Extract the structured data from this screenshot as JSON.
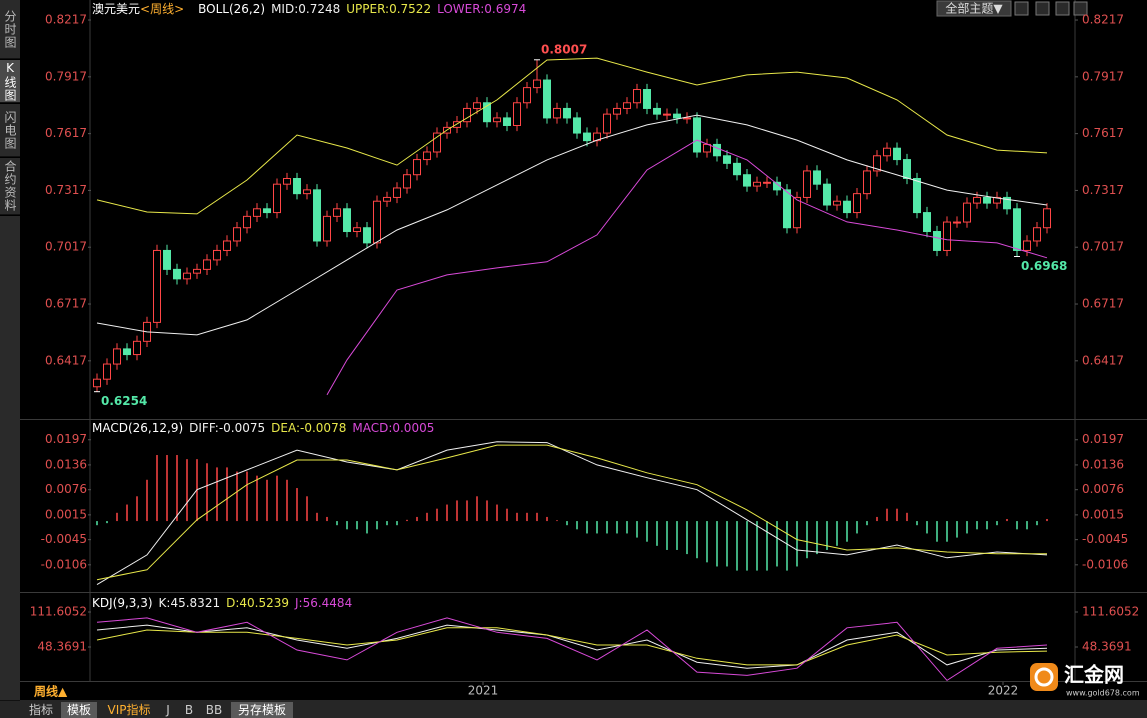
{
  "chart_data": [
    {
      "type": "candlestick",
      "title": "澳元美元",
      "subtitle": "<周线>",
      "indicator": "BOLL(26,2)",
      "up_color": "#ff4646",
      "down_color": "#54e8a8",
      "xlim": [
        -0.5,
        95.5
      ],
      "ylim": [
        0.6115,
        0.827
      ],
      "yticks": [
        0.8217,
        0.7917,
        0.7617,
        0.7317,
        0.7017,
        0.6717,
        0.6417
      ],
      "open": [
        0.628,
        0.632,
        0.64,
        0.648,
        0.645,
        0.652,
        0.662,
        0.7,
        0.69,
        0.685,
        0.688,
        0.69,
        0.695,
        0.7,
        0.705,
        0.712,
        0.718,
        0.722,
        0.72,
        0.735,
        0.738,
        0.73,
        0.732,
        0.705,
        0.718,
        0.722,
        0.71,
        0.712,
        0.704,
        0.726,
        0.728,
        0.733,
        0.74,
        0.748,
        0.752,
        0.762,
        0.765,
        0.768,
        0.775,
        0.778,
        0.768,
        0.77,
        0.766,
        0.778,
        0.786,
        0.79,
        0.77,
        0.775,
        0.77,
        0.762,
        0.758,
        0.762,
        0.772,
        0.775,
        0.778,
        0.785,
        0.775,
        0.772,
        0.772,
        0.77,
        0.77,
        0.752,
        0.756,
        0.75,
        0.746,
        0.74,
        0.734,
        0.736,
        0.736,
        0.732,
        0.712,
        0.728,
        0.742,
        0.735,
        0.724,
        0.726,
        0.72,
        0.73,
        0.742,
        0.75,
        0.754,
        0.748,
        0.738,
        0.72,
        0.71,
        0.7,
        0.715,
        0.715,
        0.725,
        0.728,
        0.725,
        0.728,
        0.722,
        0.7,
        0.705,
        0.712
      ],
      "high": [
        0.635,
        0.643,
        0.651,
        0.651,
        0.655,
        0.665,
        0.703,
        0.703,
        0.693,
        0.691,
        0.693,
        0.698,
        0.703,
        0.708,
        0.715,
        0.721,
        0.725,
        0.725,
        0.738,
        0.741,
        0.741,
        0.735,
        0.735,
        0.721,
        0.725,
        0.725,
        0.715,
        0.715,
        0.729,
        0.731,
        0.736,
        0.743,
        0.751,
        0.755,
        0.765,
        0.768,
        0.771,
        0.778,
        0.781,
        0.781,
        0.773,
        0.773,
        0.781,
        0.789,
        0.8007,
        0.793,
        0.778,
        0.778,
        0.773,
        0.765,
        0.765,
        0.775,
        0.778,
        0.781,
        0.788,
        0.788,
        0.778,
        0.775,
        0.775,
        0.773,
        0.773,
        0.759,
        0.759,
        0.753,
        0.749,
        0.743,
        0.739,
        0.739,
        0.739,
        0.735,
        0.731,
        0.745,
        0.745,
        0.738,
        0.729,
        0.729,
        0.733,
        0.745,
        0.753,
        0.757,
        0.757,
        0.751,
        0.741,
        0.723,
        0.713,
        0.718,
        0.718,
        0.728,
        0.731,
        0.731,
        0.731,
        0.731,
        0.725,
        0.708,
        0.715,
        0.725
      ],
      "low": [
        0.6254,
        0.629,
        0.637,
        0.642,
        0.642,
        0.649,
        0.659,
        0.687,
        0.682,
        0.682,
        0.685,
        0.687,
        0.692,
        0.697,
        0.702,
        0.709,
        0.715,
        0.717,
        0.717,
        0.732,
        0.727,
        0.727,
        0.702,
        0.702,
        0.715,
        0.707,
        0.707,
        0.701,
        0.701,
        0.723,
        0.725,
        0.73,
        0.737,
        0.745,
        0.749,
        0.759,
        0.762,
        0.765,
        0.772,
        0.765,
        0.765,
        0.763,
        0.763,
        0.775,
        0.783,
        0.767,
        0.767,
        0.767,
        0.759,
        0.755,
        0.755,
        0.759,
        0.769,
        0.772,
        0.775,
        0.772,
        0.769,
        0.769,
        0.767,
        0.767,
        0.749,
        0.749,
        0.747,
        0.743,
        0.737,
        0.731,
        0.731,
        0.733,
        0.729,
        0.709,
        0.709,
        0.725,
        0.732,
        0.721,
        0.721,
        0.717,
        0.717,
        0.727,
        0.739,
        0.747,
        0.745,
        0.735,
        0.717,
        0.707,
        0.697,
        0.697,
        0.712,
        0.712,
        0.722,
        0.722,
        0.722,
        0.719,
        0.6968,
        0.697,
        0.702,
        0.709
      ],
      "close": [
        0.632,
        0.64,
        0.648,
        0.645,
        0.652,
        0.662,
        0.7,
        0.69,
        0.685,
        0.688,
        0.69,
        0.695,
        0.7,
        0.705,
        0.712,
        0.718,
        0.722,
        0.72,
        0.735,
        0.738,
        0.73,
        0.732,
        0.705,
        0.718,
        0.722,
        0.71,
        0.712,
        0.704,
        0.726,
        0.728,
        0.733,
        0.74,
        0.748,
        0.752,
        0.762,
        0.765,
        0.768,
        0.775,
        0.778,
        0.768,
        0.77,
        0.766,
        0.778,
        0.786,
        0.79,
        0.77,
        0.775,
        0.77,
        0.762,
        0.758,
        0.762,
        0.772,
        0.775,
        0.778,
        0.785,
        0.775,
        0.772,
        0.772,
        0.77,
        0.77,
        0.752,
        0.756,
        0.75,
        0.746,
        0.74,
        0.734,
        0.736,
        0.736,
        0.732,
        0.712,
        0.728,
        0.742,
        0.735,
        0.724,
        0.726,
        0.72,
        0.73,
        0.742,
        0.75,
        0.754,
        0.748,
        0.738,
        0.72,
        0.71,
        0.7,
        0.715,
        0.715,
        0.725,
        0.728,
        0.725,
        0.728,
        0.722,
        0.7,
        0.705,
        0.712,
        0.722
      ],
      "series": [
        {
          "name": "MID:0.7248",
          "color": "#f0f0f0",
          "x": [
            0,
            5,
            10,
            15,
            20,
            25,
            30,
            35,
            40,
            45,
            50,
            55,
            60,
            65,
            70,
            75,
            80,
            85,
            90,
            95
          ],
          "values": [
            0.6617,
            0.657,
            0.6554,
            0.6633,
            0.6791,
            0.695,
            0.7108,
            0.7214,
            0.7346,
            0.7478,
            0.7583,
            0.7663,
            0.7715,
            0.7663,
            0.7583,
            0.7478,
            0.7399,
            0.7319,
            0.7277,
            0.724
          ]
        },
        {
          "name": "UPPER:0.7522",
          "color": "#e8e84a",
          "x": [
            0,
            5,
            10,
            15,
            20,
            25,
            30,
            35,
            40,
            45,
            50,
            55,
            60,
            65,
            70,
            75,
            80,
            85,
            90,
            95
          ],
          "values": [
            0.7267,
            0.7203,
            0.7193,
            0.7372,
            0.761,
            0.7541,
            0.7451,
            0.7636,
            0.7795,
            0.8006,
            0.8016,
            0.7942,
            0.7874,
            0.7927,
            0.7942,
            0.7911,
            0.7795,
            0.761,
            0.753,
            0.7515
          ]
        },
        {
          "name": "LOWER:0.6974",
          "color": "#d84ad8",
          "x": [
            23,
            25,
            30,
            35,
            40,
            45,
            50,
            55,
            60,
            65,
            70,
            75,
            80,
            85,
            90,
            95
          ],
          "values": [
            0.6237,
            0.6422,
            0.6791,
            0.6871,
            0.6908,
            0.694,
            0.7082,
            0.7425,
            0.7583,
            0.7478,
            0.7267,
            0.7151,
            0.7108,
            0.7056,
            0.704,
            0.6961
          ]
        }
      ],
      "annotations": [
        {
          "label": "0.8007",
          "value": 0.8007,
          "x": 44,
          "color": "#ff5050"
        },
        {
          "label": "0.6254",
          "value": 0.6254,
          "x": 0,
          "color": "#54e8a8"
        },
        {
          "label": "0.6968",
          "value": 0.6968,
          "x": 92,
          "color": "#54e8a8"
        }
      ]
    },
    {
      "type": "macd",
      "title": "MACD(26,12,9)",
      "up_color": "#ff4646",
      "down_color": "#54e8a8",
      "xlim": [
        -0.5,
        95.5
      ],
      "ylim": [
        -0.0167,
        0.024
      ],
      "yticks": [
        0.0197,
        0.0136,
        0.0076,
        0.0015,
        -0.0045,
        -0.0106
      ],
      "histogram": [
        -0.001,
        -0.0005,
        0.002,
        0.004,
        0.006,
        0.01,
        0.016,
        0.016,
        0.016,
        0.015,
        0.015,
        0.014,
        0.013,
        0.013,
        0.012,
        0.012,
        0.011,
        0.01,
        0.011,
        0.01,
        0.008,
        0.006,
        0.002,
        0.001,
        -0.001,
        -0.002,
        -0.002,
        -0.003,
        -0.002,
        -0.001,
        -0.001,
        0.0003,
        0.001,
        0.002,
        0.003,
        0.004,
        0.005,
        0.005,
        0.006,
        0.005,
        0.004,
        0.003,
        0.002,
        0.002,
        0.002,
        0.001,
        0.0002,
        -0.001,
        -0.002,
        -0.003,
        -0.003,
        -0.003,
        -0.003,
        -0.003,
        -0.004,
        -0.005,
        -0.006,
        -0.007,
        -0.007,
        -0.008,
        -0.009,
        -0.01,
        -0.011,
        -0.011,
        -0.012,
        -0.012,
        -0.012,
        -0.012,
        -0.011,
        -0.012,
        -0.011,
        -0.009,
        -0.008,
        -0.007,
        -0.006,
        -0.005,
        -0.003,
        -0.001,
        0.001,
        0.003,
        0.003,
        0.002,
        -0.001,
        -0.003,
        -0.005,
        -0.005,
        -0.004,
        -0.003,
        -0.002,
        -0.002,
        -0.001,
        0.0005,
        -0.002,
        -0.002,
        -0.001,
        0.0005
      ],
      "series": [
        {
          "name": "DIFF:-0.0075",
          "color": "#f0f0f0",
          "x": [
            0,
            5,
            10,
            15,
            20,
            25,
            30,
            35,
            40,
            45,
            50,
            55,
            60,
            65,
            70,
            75,
            80,
            85,
            90,
            95
          ],
          "values": [
            -0.0154,
            -0.0082,
            0.0076,
            0.0124,
            0.0172,
            0.0143,
            0.0124,
            0.0172,
            0.0192,
            0.019,
            0.0136,
            0.0105,
            0.0076,
            0.0003,
            -0.007,
            -0.0082,
            -0.0058,
            -0.0089,
            -0.0075,
            -0.0082
          ]
        },
        {
          "name": "DEA:-0.0078",
          "color": "#e8e84a",
          "x": [
            0,
            5,
            10,
            15,
            20,
            25,
            30,
            35,
            40,
            45,
            50,
            55,
            60,
            65,
            70,
            75,
            80,
            85,
            90,
            95
          ],
          "values": [
            -0.0142,
            -0.0118,
            0.0003,
            0.0088,
            0.0148,
            0.0148,
            0.0124,
            0.0153,
            0.0184,
            0.0184,
            0.0153,
            0.0117,
            0.0088,
            0.0027,
            -0.0045,
            -0.007,
            -0.0065,
            -0.0075,
            -0.0079,
            -0.0079
          ]
        },
        {
          "name": "MACD:0.0005",
          "color": "#d84ad8",
          "x": [],
          "values": []
        }
      ]
    },
    {
      "type": "line",
      "title": "KDJ(9,3,3)",
      "xlim": [
        -0.5,
        95.5
      ],
      "ylim": [
        -25.7,
        136.9
      ],
      "yticks": [
        111.6052,
        48.3691
      ],
      "xticks": [
        {
          "value": 38.6,
          "label": "2021"
        },
        {
          "value": 90.6,
          "label": "2022"
        }
      ],
      "series": [
        {
          "name": "K:45.8321",
          "color": "#f0f0f0",
          "x": [
            0,
            5,
            10,
            15,
            20,
            25,
            30,
            35,
            40,
            45,
            50,
            55,
            60,
            65,
            70,
            75,
            80,
            85,
            90,
            95
          ],
          "values": [
            79,
            88,
            75,
            83,
            61,
            46,
            64,
            88,
            79,
            70,
            43,
            61,
            21,
            10,
            16,
            61,
            75,
            16,
            43,
            46
          ]
        },
        {
          "name": "D:40.5239",
          "color": "#e8e84a",
          "x": [
            0,
            5,
            10,
            15,
            20,
            25,
            30,
            35,
            40,
            45,
            50,
            55,
            60,
            65,
            70,
            75,
            80,
            85,
            90,
            95
          ],
          "values": [
            61,
            79,
            75,
            75,
            64,
            52,
            61,
            83,
            83,
            70,
            52,
            52,
            28,
            16,
            16,
            52,
            70,
            34,
            39,
            41
          ]
        },
        {
          "name": "J:56.4484",
          "color": "#d84ad8",
          "x": [
            0,
            5,
            10,
            15,
            20,
            25,
            30,
            35,
            40,
            45,
            50,
            55,
            60,
            65,
            70,
            75,
            80,
            85,
            90,
            95
          ],
          "values": [
            93,
            101,
            75,
            93,
            43,
            25,
            75,
            101,
            75,
            64,
            25,
            79,
            3,
            -3,
            10,
            83,
            93,
            -12,
            46,
            52
          ]
        }
      ]
    }
  ],
  "sidebar": [
    "分时图",
    "K线图",
    "闪电图",
    "合约资料"
  ],
  "theme_button": "全部主题▼",
  "period": "周线▲",
  "tabs": [
    "指标",
    "模板",
    "VIP指标",
    "J",
    "B",
    "BB",
    "另存模板"
  ],
  "logo": {
    "name": "汇金网",
    "url": "www.gold678.com"
  }
}
